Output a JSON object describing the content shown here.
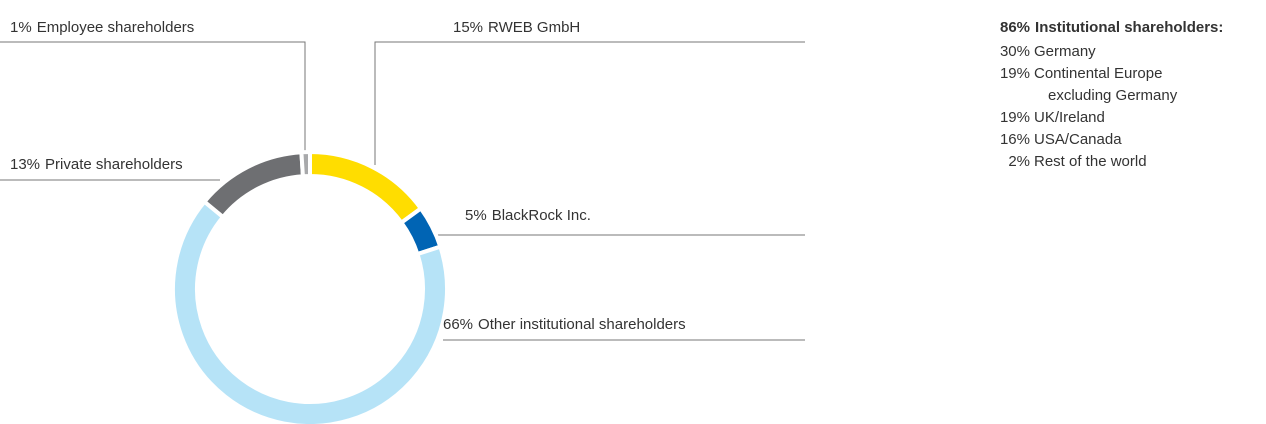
{
  "chart_data": {
    "type": "pie",
    "donut": true,
    "categories": [
      "RWEB GmbH",
      "BlackRock Inc.",
      "Other institutional shareholders",
      "Private shareholders",
      "Employee shareholders"
    ],
    "values": [
      15,
      5,
      66,
      13,
      1
    ],
    "value_labels": [
      "15%",
      "5%",
      "66%",
      "13%",
      "1%"
    ],
    "colors": [
      "#ffdd00",
      "#0064b4",
      "#b6e3f7",
      "#6e6f72",
      "#a8a9ab"
    ]
  },
  "breakdown": {
    "title": {
      "value_label": "86%",
      "name": "Institutional shareholders:"
    },
    "items": [
      {
        "value_label": "30%",
        "lines": [
          "Germany"
        ]
      },
      {
        "value_label": "19%",
        "lines": [
          "Continental Europe",
          "excluding Germany"
        ]
      },
      {
        "value_label": "19%",
        "lines": [
          "UK/Ireland"
        ]
      },
      {
        "value_label": "16%",
        "lines": [
          "USA/Canada"
        ]
      },
      {
        "value_label": "2%",
        "lines": [
          "Rest of the world"
        ]
      }
    ]
  }
}
